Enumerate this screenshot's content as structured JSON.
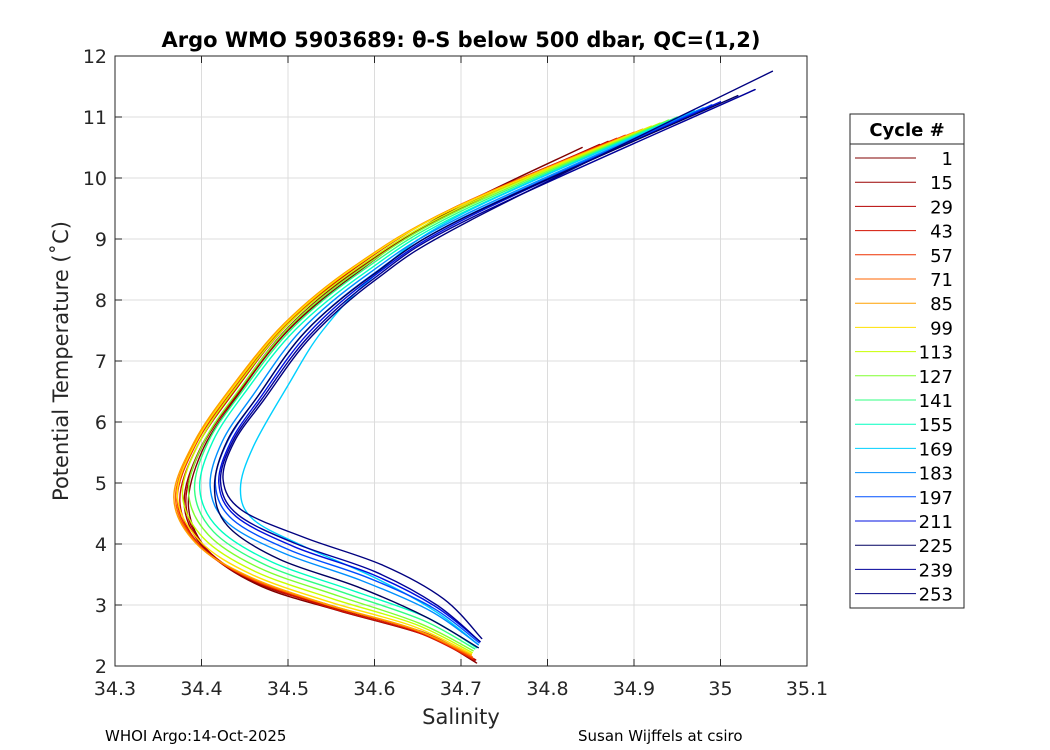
{
  "chart_data": {
    "type": "line",
    "title": "Argo WMO 5903689: θ-S below 500 dbar,  QC=(1,2)",
    "xlabel": "Salinity",
    "ylabel": "Potential Temperature (˚C)",
    "xlim": [
      34.3,
      35.1
    ],
    "ylim": [
      2,
      12
    ],
    "xticks": [
      "34.3",
      "34.4",
      "34.5",
      "34.6",
      "34.7",
      "34.8",
      "34.9",
      "35",
      "35.1"
    ],
    "yticks": [
      "2",
      "3",
      "4",
      "5",
      "6",
      "7",
      "8",
      "9",
      "10",
      "11",
      "12"
    ],
    "grid": true,
    "legend_title": "Cycle #",
    "legend_position": "outside-right",
    "series": [
      {
        "name": "1",
        "color": "#800000",
        "x": [
          34.718,
          34.66,
          34.56,
          34.47,
          34.41,
          34.385,
          34.4,
          34.44,
          34.5,
          34.58,
          34.68,
          34.84
        ],
        "y": [
          2.05,
          2.5,
          2.9,
          3.3,
          3.85,
          4.6,
          5.5,
          6.4,
          7.5,
          8.45,
          9.4,
          10.5
        ]
      },
      {
        "name": "15",
        "color": "#9a0000",
        "x": [
          34.716,
          34.655,
          34.555,
          34.465,
          34.405,
          34.38,
          34.398,
          34.44,
          34.5,
          34.58,
          34.69,
          34.86
        ],
        "y": [
          2.08,
          2.55,
          2.95,
          3.35,
          3.9,
          4.65,
          5.55,
          6.45,
          7.55,
          8.5,
          9.45,
          10.55
        ]
      },
      {
        "name": "29",
        "color": "#b40000",
        "x": [
          34.717,
          34.657,
          34.558,
          34.468,
          34.407,
          34.382,
          34.399,
          34.441,
          34.502,
          34.582,
          34.692,
          34.87
        ],
        "y": [
          2.1,
          2.55,
          2.95,
          3.35,
          3.9,
          4.65,
          5.55,
          6.45,
          7.55,
          8.5,
          9.45,
          10.6
        ]
      },
      {
        "name": "43",
        "color": "#d21000",
        "x": [
          34.715,
          34.65,
          34.55,
          34.46,
          34.4,
          34.375,
          34.395,
          34.438,
          34.5,
          34.58,
          34.69,
          34.88
        ],
        "y": [
          2.1,
          2.55,
          2.95,
          3.4,
          3.95,
          4.7,
          5.6,
          6.5,
          7.6,
          8.55,
          9.5,
          10.65
        ]
      },
      {
        "name": "57",
        "color": "#ee3000",
        "x": [
          34.714,
          34.648,
          34.548,
          34.458,
          34.398,
          34.372,
          34.393,
          34.436,
          34.498,
          34.578,
          34.69,
          34.89
        ],
        "y": [
          2.12,
          2.58,
          3.0,
          3.42,
          3.98,
          4.72,
          5.62,
          6.52,
          7.6,
          8.55,
          9.5,
          10.7
        ]
      },
      {
        "name": "71",
        "color": "#ff6400",
        "x": [
          34.713,
          34.645,
          34.545,
          34.455,
          34.395,
          34.37,
          34.392,
          34.435,
          34.497,
          34.577,
          34.69,
          34.9
        ],
        "y": [
          2.15,
          2.6,
          3.0,
          3.45,
          4.0,
          4.75,
          5.65,
          6.55,
          7.62,
          8.55,
          9.5,
          10.75
        ]
      },
      {
        "name": "85",
        "color": "#ffa000",
        "x": [
          34.712,
          34.643,
          34.543,
          34.453,
          34.393,
          34.368,
          34.391,
          34.434,
          34.496,
          34.576,
          34.69,
          34.91
        ],
        "y": [
          2.18,
          2.62,
          3.02,
          3.48,
          4.02,
          4.76,
          5.66,
          6.56,
          7.62,
          8.55,
          9.5,
          10.8
        ]
      },
      {
        "name": "99",
        "color": "#ffe000",
        "x": [
          34.712,
          34.645,
          34.548,
          34.458,
          34.398,
          34.372,
          34.394,
          34.436,
          34.498,
          34.578,
          34.692,
          34.92
        ],
        "y": [
          2.2,
          2.65,
          3.05,
          3.5,
          4.05,
          4.8,
          5.68,
          6.56,
          7.62,
          8.55,
          9.5,
          10.85
        ]
      },
      {
        "name": "113",
        "color": "#c8ff00",
        "x": [
          34.713,
          34.648,
          34.552,
          34.462,
          34.402,
          34.378,
          34.398,
          34.439,
          34.5,
          34.58,
          34.694,
          34.93
        ],
        "y": [
          2.22,
          2.68,
          3.1,
          3.55,
          4.1,
          4.82,
          5.68,
          6.55,
          7.6,
          8.52,
          9.48,
          10.9
        ]
      },
      {
        "name": "127",
        "color": "#80ff30",
        "x": [
          34.714,
          34.652,
          34.558,
          34.468,
          34.408,
          34.385,
          34.403,
          34.443,
          34.503,
          34.583,
          34.696,
          34.94
        ],
        "y": [
          2.25,
          2.7,
          3.15,
          3.6,
          4.15,
          4.85,
          5.68,
          6.52,
          7.58,
          8.5,
          9.46,
          10.95
        ]
      },
      {
        "name": "141",
        "color": "#30ff80",
        "x": [
          34.716,
          34.656,
          34.565,
          34.475,
          34.414,
          34.392,
          34.408,
          34.447,
          34.506,
          34.586,
          34.698,
          34.95
        ],
        "y": [
          2.28,
          2.75,
          3.2,
          3.65,
          4.2,
          4.88,
          5.68,
          6.5,
          7.55,
          8.48,
          9.44,
          11.0
        ]
      },
      {
        "name": "155",
        "color": "#00ffc0",
        "x": [
          34.718,
          34.66,
          34.572,
          34.482,
          34.42,
          34.398,
          34.413,
          34.45,
          34.509,
          34.589,
          34.7,
          34.96
        ],
        "y": [
          2.3,
          2.8,
          3.25,
          3.7,
          4.25,
          4.9,
          5.68,
          6.48,
          7.52,
          8.45,
          9.42,
          11.05
        ]
      },
      {
        "name": "169",
        "color": "#00d0ff",
        "x": [
          34.72,
          34.67,
          34.6,
          34.52,
          34.46,
          34.445,
          34.46,
          34.5,
          34.54,
          34.6,
          34.7,
          34.97
        ],
        "y": [
          2.35,
          2.9,
          3.45,
          3.95,
          4.4,
          4.9,
          5.6,
          6.6,
          7.5,
          8.4,
          9.4,
          11.1
        ]
      },
      {
        "name": "183",
        "color": "#0090ff",
        "x": [
          34.72,
          34.665,
          34.585,
          34.495,
          34.43,
          34.41,
          34.424,
          34.46,
          34.515,
          34.592,
          34.702,
          34.98
        ],
        "y": [
          2.35,
          2.9,
          3.4,
          3.85,
          4.35,
          4.95,
          5.68,
          6.45,
          7.5,
          8.42,
          9.38,
          11.15
        ]
      },
      {
        "name": "197",
        "color": "#0050ff",
        "x": [
          34.721,
          34.668,
          34.592,
          34.502,
          34.436,
          34.416,
          34.43,
          34.465,
          34.52,
          34.596,
          34.704,
          34.99
        ],
        "y": [
          2.38,
          2.95,
          3.45,
          3.9,
          4.4,
          4.98,
          5.68,
          6.42,
          7.48,
          8.4,
          9.36,
          11.2
        ]
      },
      {
        "name": "211",
        "color": "#0010e0",
        "x": [
          34.722,
          34.67,
          34.598,
          34.508,
          34.44,
          34.42,
          34.434,
          34.468,
          34.523,
          34.598,
          34.706,
          35.0
        ],
        "y": [
          2.4,
          2.98,
          3.5,
          3.95,
          4.45,
          5.0,
          5.68,
          6.4,
          7.45,
          8.38,
          9.34,
          11.25
        ]
      },
      {
        "name": "225",
        "color": "#000060",
        "x": [
          34.72,
          34.66,
          34.58,
          34.49,
          34.43,
          34.415,
          34.43,
          34.465,
          34.52,
          34.597,
          34.705,
          35.02
        ],
        "y": [
          2.3,
          2.8,
          3.3,
          3.75,
          4.3,
          4.95,
          5.7,
          6.42,
          7.48,
          8.4,
          9.36,
          11.35
        ]
      },
      {
        "name": "239",
        "color": "#00009a",
        "x": [
          34.722,
          34.672,
          34.6,
          34.51,
          34.442,
          34.422,
          34.436,
          34.47,
          34.525,
          34.6,
          34.708,
          35.04
        ],
        "y": [
          2.4,
          3.0,
          3.55,
          4.0,
          4.48,
          5.02,
          5.68,
          6.38,
          7.42,
          8.36,
          9.32,
          11.45
        ]
      },
      {
        "name": "253",
        "color": "#000080",
        "x": [
          34.724,
          34.68,
          34.61,
          34.52,
          34.447,
          34.425,
          34.438,
          34.472,
          34.527,
          34.602,
          34.71,
          35.06
        ],
        "y": [
          2.45,
          3.1,
          3.65,
          4.1,
          4.55,
          5.05,
          5.68,
          6.36,
          7.4,
          8.34,
          9.3,
          11.75
        ]
      }
    ]
  },
  "footer": {
    "left": "WHOI Argo:14-Oct-2025",
    "right": "Susan Wijffels at csiro"
  }
}
